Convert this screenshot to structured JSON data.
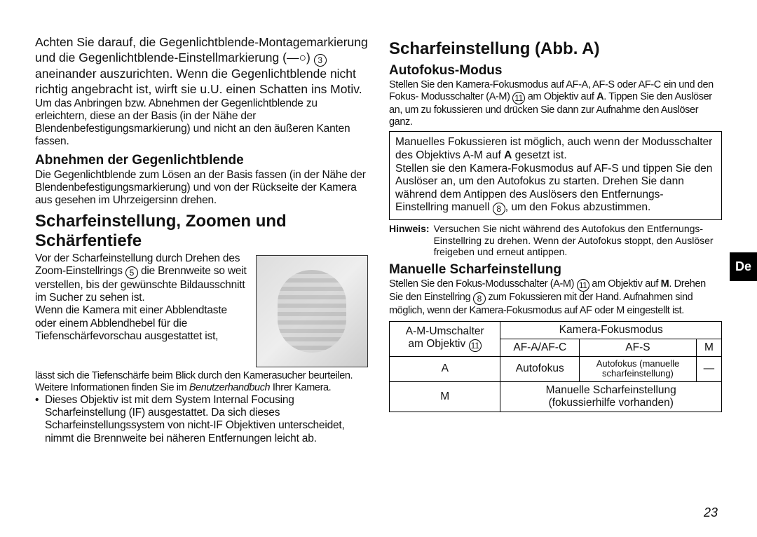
{
  "sideTab": "De",
  "pageNumber": "23",
  "left": {
    "p1": "Achten Sie darauf, die Gegenlichtblende-Montagemarkierung und die Gegenlichtblende-Einstellmarkierung (",
    "p1_sym": "—○",
    "p1_b": ") ",
    "p1_num": "3",
    "p1_c": " aneinander auszurichten. Wenn die Gegenlichtblende nicht richtig angebracht ist, wirft sie u.U. einen Schatten ins Motiv.",
    "p2": "Um das Anbringen bzw. Abnehmen der Gegenlichtblende zu erleichtern, diese an der Basis (in der Nähe der Blendenbefestigungsmarkierung) und nicht an den äußeren Kanten fassen.",
    "h3a": "Abnehmen der Gegenlichtblende",
    "p3": "Die Gegenlichtblende zum Lösen an der Basis fassen (in der Nähe der Blendenbefestigungsmarkierung) und von der Rückseite der Kamera aus gesehen im Uhrzeigersinn drehen.",
    "h2a": "Scharfeinstellung, Zoomen und Schärfentiefe",
    "p4a": "Vor der Scharfeinstellung durch Drehen des Zoom-Einstellrings ",
    "p4a_num": "5",
    "p4b": " die Brennweite so weit verstellen, bis der gewünschte Bildausschnitt im Sucher zu sehen ist.",
    "p4c": "Wenn die Kamera mit einer Abblendtaste oder einem Abblendhebel für die Tiefenschärfevorschau ausgestattet ist,",
    "p5a": "lässt sich die Tiefenschärfe beim Blick durch den Kamerasucher beurteilen. Weitere Informationen finden Sie im ",
    "p5b": "Benutzerhandbuch",
    "p5c": " Ihrer Kamera.",
    "bul1": "Dieses Objektiv ist mit dem System Internal Focusing Scharfeinstellung (IF) ausgestattet. Da sich dieses Scharfeinstellungssystem von nicht-IF Objektiven unterscheidet, nimmt die Brennweite bei näheren Entfernungen leicht ab."
  },
  "right": {
    "h2b": "Scharfeinstellung (Abb. A)",
    "h3b": "Autofokus-Modus",
    "p6a": "Stellen Sie den Kamera-Fokusmodus auf AF-A, AF-S oder AF-C ein und den Fokus- Modusschalter (A-M) ",
    "p6_num1": "11",
    "p6b": " am Objektiv auf ",
    "p6_bold1": "A",
    "p6c": ". Tippen Sie den Auslöser an, um zu fokussieren und drücken Sie dann zur Aufnahme den Auslöser ganz.",
    "box1a": "Manuelles Fokussieren ist möglich, auch wenn der Modusschalter des Objektivs A-M auf ",
    "box1_bold": "A",
    "box1b": " gesetzt ist.",
    "box1c": "Stellen sie den Kamera-Fokusmodus auf AF-S und tippen Sie den Auslöser an, um den Autofokus zu starten. Drehen Sie dann während dem Antippen des Auslösers den Entfernungs-Einstellring manuell ",
    "box1_num": "8",
    "box1d": ", um den Fokus abzustimmen.",
    "note_label": "Hinweis:",
    "note_text": "Versuchen Sie nicht während des Autofokus den Entfernungs-Einstellring zu drehen. Wenn der Autofokus stoppt, den Auslöser freigeben und erneut antippen.",
    "h3c": "Manuelle Scharfeinstellung",
    "p7a": "Stellen Sie den Fokus-Modusschalter (A-M) ",
    "p7_num1": "11",
    "p7b": " am Objektiv auf ",
    "p7_bold1": "M",
    "p7c": ". Drehen Sie den Einstellring ",
    "p7_num2": "8",
    "p7d": " zum Fokussieren mit der Hand. Aufnahmen sind möglich, wenn der Kamera-Fokusmodus auf AF oder M eingestellt ist.",
    "table": {
      "r1c1": "A-M-Umschalter",
      "r1c2": "Kamera-Fokusmodus",
      "r2c1a": "am Objektiv ",
      "r2c1_num": "11",
      "r2c2": "AF-A/AF-C",
      "r2c3": "AF-S",
      "r2c4": "M",
      "r3c1": "A",
      "r3c2": "Autofokus",
      "r3c3a": "Autofokus (manuelle",
      "r3c3b": "scharfeinstellung)",
      "r3c4": "—",
      "r4c1": "M",
      "r4c2a": "Manuelle Scharfeinstellung",
      "r4c2b": "(fokussierhilfe vorhanden)"
    }
  }
}
